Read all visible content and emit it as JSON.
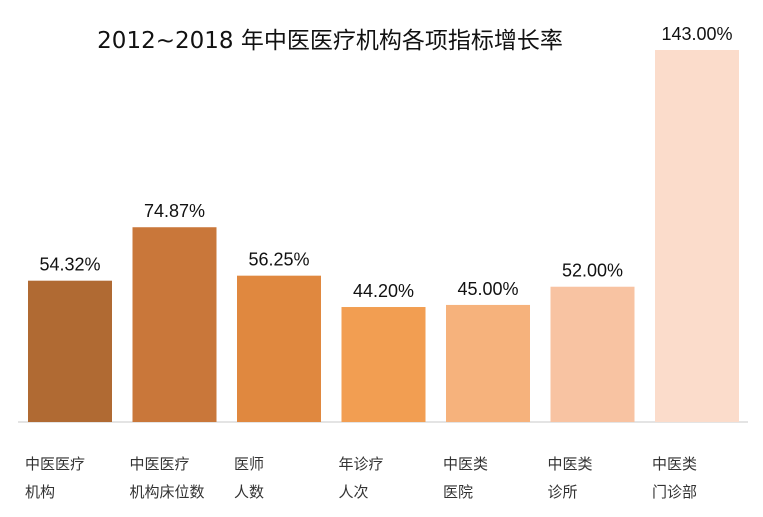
{
  "chart_data": {
    "type": "bar",
    "title": "2012~2018 年中医医疗机构各项指标增长率",
    "categories": [
      [
        "中医医疗",
        "机构"
      ],
      [
        "中医医疗",
        "机构床位数"
      ],
      [
        "医师",
        "人数"
      ],
      [
        "年诊疗",
        "人次"
      ],
      [
        "中医类",
        "医院"
      ],
      [
        "中医类",
        "诊所"
      ],
      [
        "中医类",
        "门诊部"
      ]
    ],
    "values": [
      54.32,
      74.87,
      56.25,
      44.2,
      45.0,
      52.0,
      143.0
    ],
    "value_labels": [
      "54.32%",
      "74.87%",
      "56.25%",
      "44.20%",
      "45.00%",
      "52.00%",
      "143.00%"
    ],
    "colors": [
      "#b06a33",
      "#c9773a",
      "#e0883f",
      "#f29e52",
      "#f6b27c",
      "#f8c3a2",
      "#fbdccb"
    ],
    "ylim": [
      0,
      143
    ],
    "grid": false,
    "legend": "none"
  }
}
